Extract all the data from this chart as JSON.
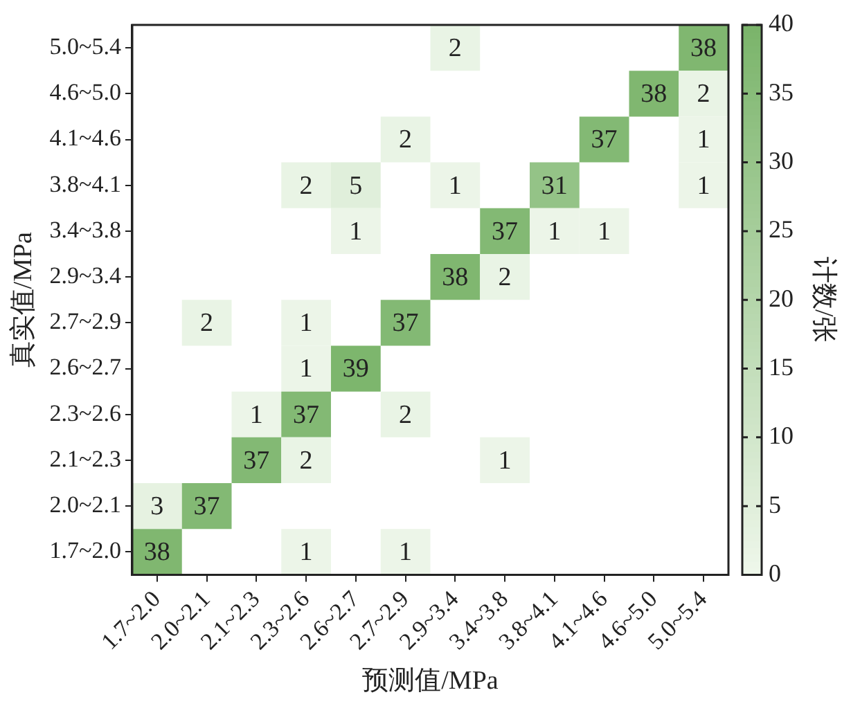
{
  "chart_data": {
    "type": "heatmap",
    "xlabel": "预测值/MPa",
    "ylabel": "真实值/MPa",
    "clabel": "计数/张",
    "categories": [
      "1.7~2.0",
      "2.0~2.1",
      "2.1~2.3",
      "2.3~2.6",
      "2.6~2.7",
      "2.7~2.9",
      "2.9~3.4",
      "3.4~3.8",
      "3.8~4.1",
      "4.1~4.6",
      "4.6~5.0",
      "5.0~5.4"
    ],
    "y_categories": [
      "5.0~5.4",
      "4.6~5.0",
      "4.1~4.6",
      "3.8~4.1",
      "3.4~3.8",
      "2.9~3.4",
      "2.7~2.9",
      "2.6~2.7",
      "2.3~2.6",
      "2.1~2.3",
      "2.0~2.1",
      "1.7~2.0"
    ],
    "cells": [
      [
        null,
        null,
        null,
        null,
        null,
        null,
        2,
        null,
        null,
        null,
        null,
        38
      ],
      [
        null,
        null,
        null,
        null,
        null,
        null,
        null,
        null,
        null,
        null,
        38,
        2
      ],
      [
        null,
        null,
        null,
        null,
        null,
        2,
        null,
        null,
        null,
        37,
        null,
        1
      ],
      [
        null,
        null,
        null,
        2,
        5,
        null,
        1,
        null,
        31,
        null,
        null,
        1
      ],
      [
        null,
        null,
        null,
        null,
        1,
        null,
        null,
        37,
        1,
        1,
        null,
        null
      ],
      [
        null,
        null,
        null,
        null,
        null,
        null,
        38,
        2,
        null,
        null,
        null,
        null
      ],
      [
        null,
        2,
        null,
        1,
        null,
        37,
        null,
        null,
        null,
        null,
        null,
        null
      ],
      [
        null,
        null,
        null,
        1,
        39,
        null,
        null,
        null,
        null,
        null,
        null,
        null
      ],
      [
        null,
        null,
        1,
        37,
        null,
        2,
        null,
        null,
        null,
        null,
        null,
        null
      ],
      [
        null,
        null,
        37,
        2,
        null,
        null,
        null,
        1,
        null,
        null,
        null,
        null
      ],
      [
        3,
        37,
        null,
        null,
        null,
        null,
        null,
        null,
        null,
        null,
        null,
        null
      ],
      [
        38,
        null,
        null,
        1,
        null,
        1,
        null,
        null,
        null,
        null,
        null,
        null
      ]
    ],
    "clim": [
      0,
      40
    ],
    "cticks": [
      0,
      5,
      10,
      15,
      20,
      25,
      30,
      35,
      40
    ],
    "data_labels": true,
    "grid": false,
    "legend": false
  }
}
